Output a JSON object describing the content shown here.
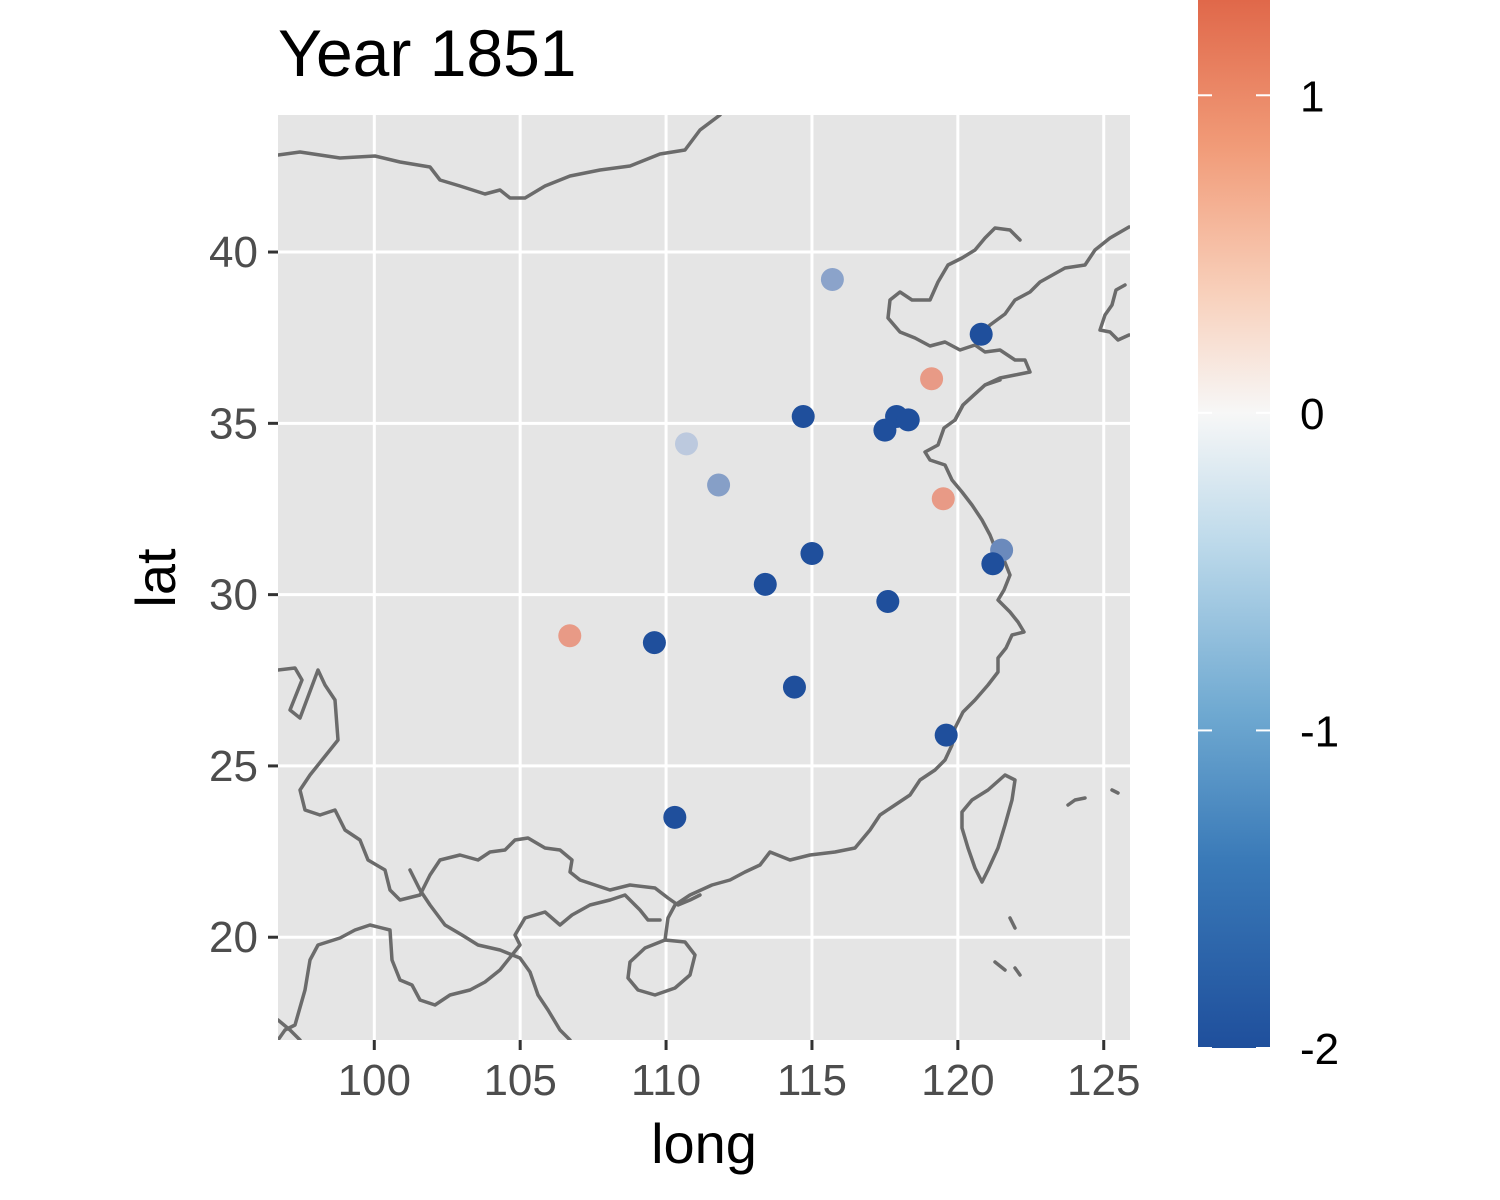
{
  "title": "Year 1851",
  "x_axis_title": "long",
  "y_axis_title": "lat",
  "colors": {
    "panel_bg": "#e5e5e5",
    "grid": "#ffffff",
    "border": "#6b6b6b",
    "low": "#1f4f9c",
    "mid": "#f7f7f7",
    "high": "#e0684a"
  },
  "chart_data": {
    "type": "scatter",
    "title": "Year 1851",
    "xlabel": "long",
    "ylabel": "lat",
    "xlim": [
      96.7,
      125.9
    ],
    "ylim": [
      17.0,
      44.0
    ],
    "x_ticks": [
      100,
      105,
      110,
      115,
      120,
      125
    ],
    "y_ticks": [
      20,
      25,
      30,
      35,
      40
    ],
    "x_tick_labels": [
      "100",
      "105",
      "110",
      "115",
      "120",
      "125"
    ],
    "y_tick_labels": [
      "20",
      "25",
      "30",
      "35",
      "40"
    ],
    "grid": true,
    "legend_position": "right",
    "colorbar": {
      "min": -2,
      "max": 1.3,
      "ticks": [
        1,
        0,
        -1,
        -2
      ],
      "tick_labels": [
        "1",
        "0",
        "-1",
        "-2"
      ],
      "low_color": "#1f4f9c",
      "mid_color": "#f7f7f7",
      "high_color": "#e0684a"
    },
    "points": [
      {
        "long": 115.7,
        "lat": 39.2,
        "value": -1.0
      },
      {
        "long": 120.8,
        "lat": 37.6,
        "value": -2.0
      },
      {
        "long": 119.1,
        "lat": 36.3,
        "value": 0.85
      },
      {
        "long": 114.7,
        "lat": 35.2,
        "value": -2.0
      },
      {
        "long": 117.9,
        "lat": 35.2,
        "value": -2.0
      },
      {
        "long": 118.3,
        "lat": 35.1,
        "value": -2.0
      },
      {
        "long": 117.5,
        "lat": 34.8,
        "value": -2.0
      },
      {
        "long": 110.7,
        "lat": 34.4,
        "value": -0.55
      },
      {
        "long": 111.8,
        "lat": 33.2,
        "value": -1.05
      },
      {
        "long": 119.5,
        "lat": 32.8,
        "value": 0.85
      },
      {
        "long": 115.0,
        "lat": 31.2,
        "value": -2.0
      },
      {
        "long": 121.5,
        "lat": 31.3,
        "value": -1.3
      },
      {
        "long": 121.2,
        "lat": 30.9,
        "value": -2.0
      },
      {
        "long": 113.4,
        "lat": 30.3,
        "value": -2.0
      },
      {
        "long": 117.6,
        "lat": 29.8,
        "value": -2.0
      },
      {
        "long": 106.7,
        "lat": 28.8,
        "value": 0.85
      },
      {
        "long": 109.6,
        "lat": 28.6,
        "value": -2.0
      },
      {
        "long": 114.4,
        "lat": 27.3,
        "value": -2.0
      },
      {
        "long": 119.6,
        "lat": 25.9,
        "value": -2.0
      },
      {
        "long": 110.3,
        "lat": 23.5,
        "value": -2.0
      }
    ]
  }
}
